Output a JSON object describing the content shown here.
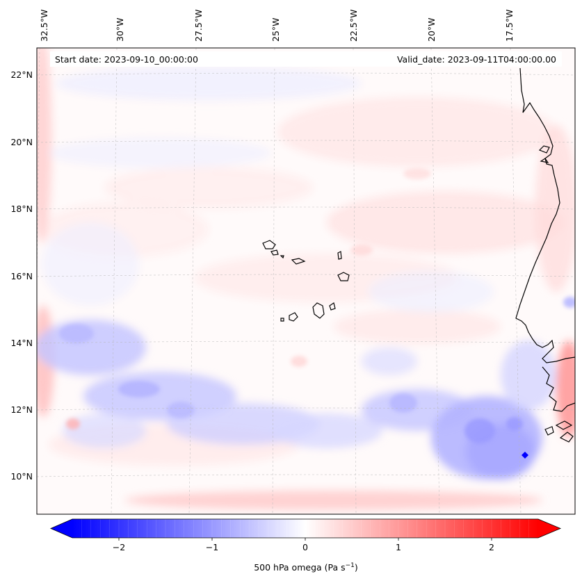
{
  "header": {
    "start_date": "Start date: 2023-09-10_00:00:00",
    "valid_date": "Valid_date: 2023-09-11T04:00:00.00"
  },
  "map": {
    "longitude_labels": [
      "32.5°W",
      "30°W",
      "27.5°W",
      "25°W",
      "22.5°W",
      "20°W",
      "17.5°W"
    ],
    "latitude_labels": [
      "22°N",
      "20°N",
      "18°N",
      "16°N",
      "14°N",
      "12°N",
      "10°N"
    ],
    "gridlines": true,
    "features": [
      "Cabo Verde islands",
      "West African coastline"
    ]
  },
  "colorbar": {
    "label": "500 hPa omega (Pa s",
    "label_sup": "−1",
    "label_close": ")",
    "tick_labels": [
      "−2",
      "−1",
      "0",
      "1",
      "2"
    ],
    "tick_values": [
      -2,
      -1,
      0,
      1,
      2
    ],
    "range": [
      -2.5,
      2.5
    ],
    "extend": "both",
    "colormap": "bwr",
    "colors": {
      "min": "#0000ff",
      "mid": "#ffffff",
      "max": "#ff0000"
    }
  }
}
